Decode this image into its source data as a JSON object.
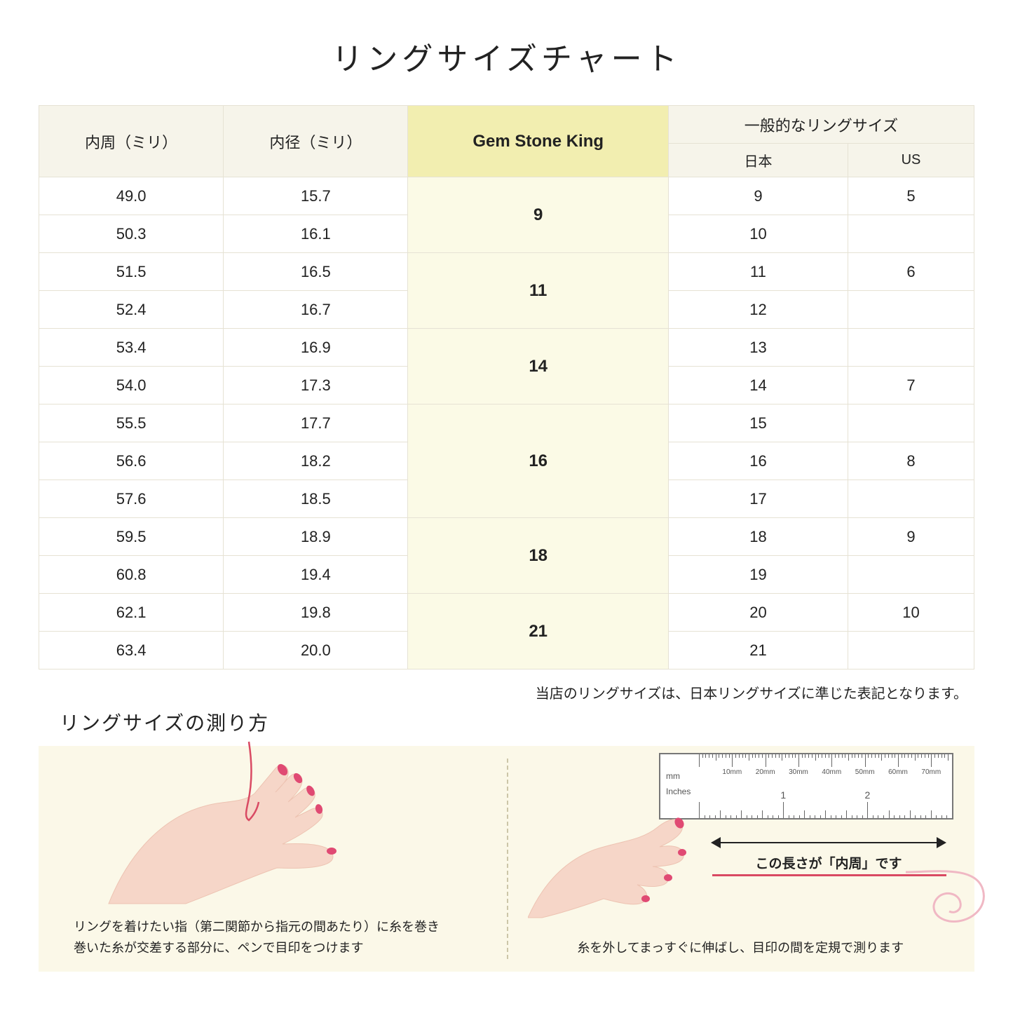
{
  "title": "リングサイズチャート",
  "table": {
    "headers": {
      "circumference": "内周（ミリ）",
      "diameter": "内径（ミリ）",
      "gsk": "Gem Stone King",
      "general": "一般的なリングサイズ",
      "japan": "日本",
      "us": "US"
    },
    "groups": [
      {
        "gsk": "9",
        "rows": [
          {
            "c": "49.0",
            "d": "15.7",
            "jp": "9",
            "us": "5"
          },
          {
            "c": "50.3",
            "d": "16.1",
            "jp": "10",
            "us": ""
          }
        ]
      },
      {
        "gsk": "11",
        "rows": [
          {
            "c": "51.5",
            "d": "16.5",
            "jp": "11",
            "us": "6"
          },
          {
            "c": "52.4",
            "d": "16.7",
            "jp": "12",
            "us": ""
          }
        ]
      },
      {
        "gsk": "14",
        "rows": [
          {
            "c": "53.4",
            "d": "16.9",
            "jp": "13",
            "us": ""
          },
          {
            "c": "54.0",
            "d": "17.3",
            "jp": "14",
            "us": "7"
          }
        ]
      },
      {
        "gsk": "16",
        "rows": [
          {
            "c": "55.5",
            "d": "17.7",
            "jp": "15",
            "us": ""
          },
          {
            "c": "56.6",
            "d": "18.2",
            "jp": "16",
            "us": "8"
          },
          {
            "c": "57.6",
            "d": "18.5",
            "jp": "17",
            "us": ""
          }
        ]
      },
      {
        "gsk": "18",
        "rows": [
          {
            "c": "59.5",
            "d": "18.9",
            "jp": "18",
            "us": "9"
          },
          {
            "c": "60.8",
            "d": "19.4",
            "jp": "19",
            "us": ""
          }
        ]
      },
      {
        "gsk": "21",
        "rows": [
          {
            "c": "62.1",
            "d": "19.8",
            "jp": "20",
            "us": "10"
          },
          {
            "c": "63.4",
            "d": "20.0",
            "jp": "21",
            "us": ""
          }
        ]
      }
    ]
  },
  "note": "当店のリングサイズは、日本リングサイズに準じた表記となります。",
  "measure": {
    "title": "リングサイズの測り方",
    "left_caption": "リングを着けたい指（第二関節から指元の間あたり）に糸を巻き\n巻いた糸が交差する部分に、ペンで目印をつけます",
    "right_arrow_caption": "この長さが「内周」です",
    "right_caption": "糸を外してまっすぐに伸ばし、目印の間を定規で測ります",
    "ruler": {
      "mm_unit": "mm",
      "in_unit": "Inches",
      "mm_labels": [
        "10mm",
        "20mm",
        "30mm",
        "40mm",
        "50mm",
        "60mm",
        "70mm"
      ],
      "in_labels": [
        "1",
        "2"
      ]
    }
  },
  "colors": {
    "header_bg": "#f6f4ea",
    "gsk_header_bg": "#f2eeb0",
    "gsk_cell_bg": "#fbfae6",
    "border": "#e6e2d4",
    "panel_bg": "#fbf8e8",
    "skin": "#f6d6c8",
    "skin_dark": "#edc3b2",
    "nail": "#e04a73",
    "thread": "#d94a63"
  }
}
